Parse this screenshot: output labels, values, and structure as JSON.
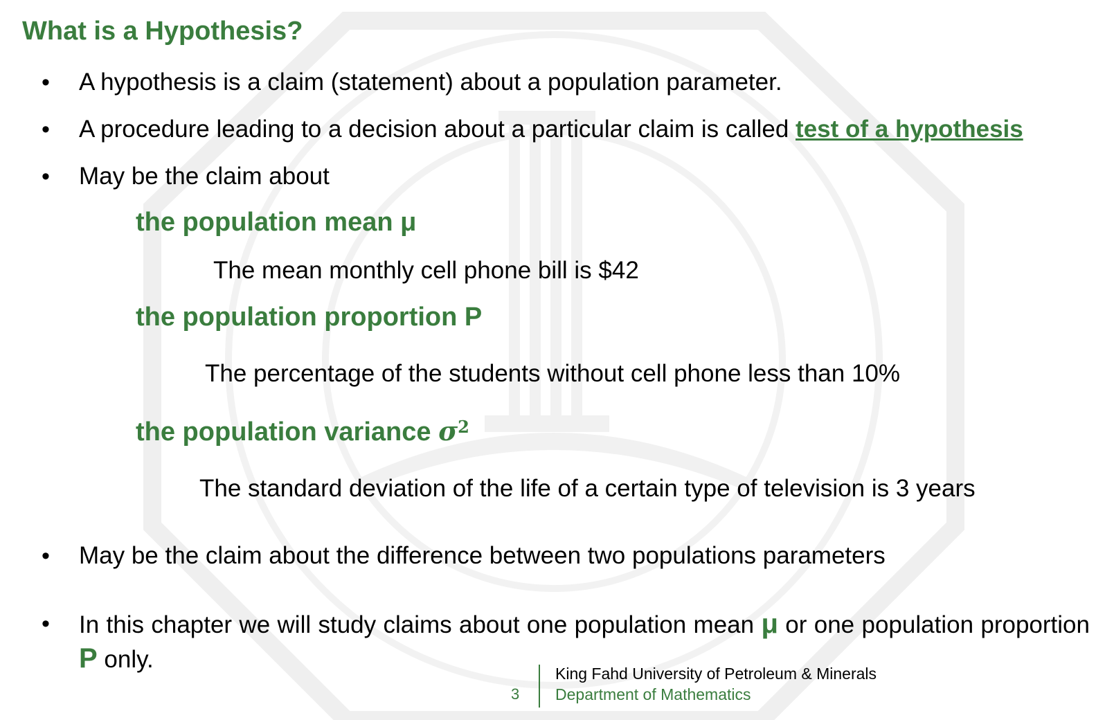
{
  "slide": {
    "title": "What is a Hypothesis?",
    "bullets": {
      "b1": "A hypothesis is a claim (statement) about a population parameter.",
      "b2_text": "A procedure leading to a decision about a particular claim is called ",
      "b2_link": "test of a hypothesis",
      "b3": "May be the claim about",
      "b4": "May be the claim about the difference between two populations parameters",
      "b5_part1": "In this chapter we will study claims about one population mean ",
      "b5_mu": "μ",
      "b5_part2": " or one population proportion ",
      "b5_p": "P",
      "b5_part3": " only."
    },
    "claims": [
      {
        "heading": "the population mean μ",
        "example": "The mean monthly cell phone bill is $42"
      },
      {
        "heading": "the population proportion P",
        "example": "The percentage of the students without cell phone less than 10%"
      },
      {
        "heading": "the population variance ",
        "symbol": "σ",
        "superscript": "2",
        "example": "The standard deviation of the life of a certain type of television is 3 years"
      }
    ],
    "bullet_glyph": "•"
  },
  "footer": {
    "page_number": "3",
    "university": "King Fahd University of Petroleum & Minerals",
    "department": "Department of Mathematics"
  },
  "colors": {
    "accent_green": "#3a7d3e",
    "text": "#000000",
    "watermark": "#ececec"
  }
}
